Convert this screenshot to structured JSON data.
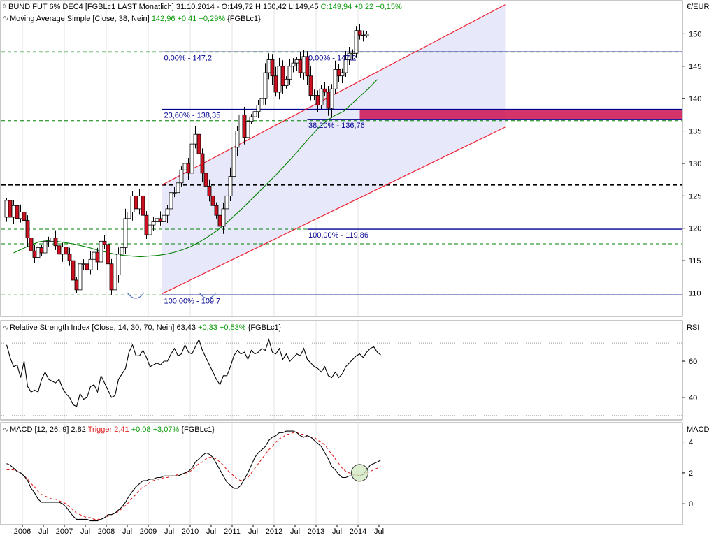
{
  "chart_data": [
    {
      "type": "candlestick",
      "panel": "price",
      "title": "BUND FUT 6% DEC4 [FGBLc1 LAST Monatlich] 31.10.2014",
      "ohlc_text": {
        "open": "O:149,72",
        "high": "H:150,42",
        "low": "L:149,45",
        "close": "C:149,94 +0,22 +0,15%"
      },
      "ma_legend": {
        "label": "Moving Average Simple [Close, 38, Nein]",
        "value": "142,96 +0,41 +0,29%",
        "ric": "{FGBLc1}"
      },
      "unit": "€/EUR",
      "ylim": [
        106.5,
        155
      ],
      "yticks": [
        "110",
        "115",
        "120",
        "125",
        "130",
        "135",
        "140",
        "145",
        "150"
      ],
      "x_labels": [
        {
          "label": "2006",
          "m": 4.5
        },
        {
          "label": "Jul",
          "m": 10.5
        },
        {
          "label": "2007",
          "m": 16.5
        },
        {
          "label": "Jul",
          "m": 22.5
        },
        {
          "label": "2008",
          "m": 28.5
        },
        {
          "label": "Jul",
          "m": 34.5
        },
        {
          "label": "2009",
          "m": 40.5
        },
        {
          "label": "Jul",
          "m": 46.5
        },
        {
          "label": "2010",
          "m": 52.5
        },
        {
          "label": "Jul",
          "m": 58.5
        },
        {
          "label": "2011",
          "m": 64.5
        },
        {
          "label": "Jul",
          "m": 70.5
        },
        {
          "label": "2012",
          "m": 76.5
        },
        {
          "label": "Jul",
          "m": 82.5
        },
        {
          "label": "2013",
          "m": 88.5
        },
        {
          "label": "Jul",
          "m": 94.5
        },
        {
          "label": "2014",
          "m": 100.5
        },
        {
          "label": "Jul",
          "m": 106.5
        }
      ],
      "closes": [
        124.3,
        121.7,
        123.5,
        121.5,
        122.5,
        121.2,
        118.5,
        116.5,
        115.5,
        117.0,
        116.2,
        118.0,
        118.0,
        118.5,
        117.3,
        116.0,
        117.1,
        116.0,
        115.0,
        112.0,
        110.5,
        114.5,
        114.5,
        113.6,
        115.2,
        116.3,
        114.8,
        118.0,
        117.5,
        114.5,
        110.5,
        112.8,
        116.0,
        117.0,
        121.5,
        122.5,
        125.0,
        123.0,
        125.0,
        122.0,
        119.0,
        120.5,
        121.0,
        121.5,
        121.0,
        122.0,
        123.0,
        125.5,
        125.5,
        127.0,
        129.0,
        130.0,
        128.5,
        133.0,
        134.5,
        131.5,
        128.5,
        126.5,
        125.0,
        123.5,
        122.0,
        120.3,
        123.0,
        125.0,
        128.0,
        132.5,
        135.0,
        137.5,
        134.0,
        136.5,
        137.2,
        138.0,
        139.0,
        140.0,
        144.0,
        146.0,
        143.5,
        141.0,
        145.0,
        142.0,
        143.0,
        145.0,
        145.5,
        146.0,
        144.0,
        146.5,
        143.5,
        140.5,
        140.5,
        139.0,
        141.5,
        141.0,
        138.5,
        141.5,
        144.5,
        143.5,
        144.0,
        146.0,
        147.0,
        147.0,
        150.5,
        149.8,
        149.72,
        149.94
      ],
      "first_candle": {
        "open": 121.7,
        "high": 124.6,
        "low": 121.0,
        "close": 124.3
      },
      "candle_tail": {
        "close": 149.94,
        "high": 150.42,
        "low": 149.45
      },
      "ma": {
        "start_month": 2,
        "values": [
          116.2,
          116.8,
          117.4,
          117.9,
          118.1,
          118.0,
          117.8,
          117.6,
          117.3,
          117.0,
          116.6,
          116.3,
          116.0,
          115.8,
          115.7,
          115.6,
          115.7,
          115.8,
          116.0,
          116.3,
          116.7,
          117.2,
          117.9,
          118.7,
          119.6,
          120.6,
          121.8,
          123.0,
          124.3,
          125.6,
          126.9,
          128.2,
          129.6,
          131.0,
          132.5,
          134.0,
          135.4,
          136.6,
          137.4,
          138.0,
          139.2,
          140.4,
          141.6,
          142.96
        ]
      },
      "channel": {
        "upper": {
          "from": [
            44.5,
            126.7
          ],
          "to": [
            142.6,
            154.5
          ]
        },
        "lower": {
          "from": [
            44.5,
            109.9
          ],
          "to": [
            142.6,
            135.6
          ]
        },
        "shade_start": 44.5
      },
      "levels": [
        {
          "y": 147.2,
          "style": "green",
          "from": 0
        },
        {
          "y": 136.6,
          "style": "green",
          "from": 0
        },
        {
          "y": 126.7,
          "style": "black",
          "from": 0
        },
        {
          "y": 119.86,
          "style": "green",
          "from": 0
        },
        {
          "y": 117.6,
          "style": "green",
          "from": 0
        },
        {
          "y": 109.7,
          "style": "green",
          "from": 0
        }
      ],
      "fib_lines": [
        {
          "y": 147.2,
          "from": 44.5,
          "label": "0,00% - 147,2",
          "label_m": 45.0,
          "label_dy": -8
        },
        {
          "y": 147.2,
          "from": 86.0,
          "label": "0,00% - 147,2",
          "label_m": 86.3,
          "label_dy": -8
        },
        {
          "y": 138.35,
          "from": 44.5,
          "label": "23,60% - 138,35",
          "label_m": 45.0,
          "label_dy": -4
        },
        {
          "y": 136.76,
          "from": 86.0,
          "label": "38,20% - 136,76",
          "label_m": 86.3,
          "label_dy": -6
        },
        {
          "y": 119.86,
          "from": 86.0,
          "label": "100,00% - 119,86",
          "label_m": 86.3,
          "label_dy": -6
        },
        {
          "y": 109.7,
          "from": 44.5,
          "label": "100,00% - 109,7",
          "label_m": 45.0,
          "label_dy": -4
        }
      ],
      "fill_zone": {
        "y1": 136.76,
        "y2": 138.35,
        "from": 101.0
      },
      "colors": {
        "up": "#ffffff",
        "down": "#cc1020",
        "grid": "#c0c0c0",
        "level_green": "#008000",
        "fib": "#000090",
        "channel": "#ee2030",
        "shade": "#e8e8fb",
        "ma": "#008000"
      }
    },
    {
      "type": "line",
      "panel": "rsi",
      "title": "Relative Strength Index [Close, 14, 30, 70, Nein]",
      "value": "63,43",
      "change": "+0,33 +0,53%",
      "ric": "{FGBLc1}",
      "axis_label": "RSI",
      "ylim": [
        28,
        82
      ],
      "yticks": [
        "40",
        "60"
      ],
      "guides": [
        30,
        70
      ],
      "values": [
        69,
        62,
        57,
        58,
        51,
        60,
        46,
        43,
        44,
        43,
        50,
        54,
        50,
        49,
        48,
        50,
        45,
        42,
        40,
        36,
        35,
        42,
        39,
        40,
        46,
        47,
        43,
        52,
        48,
        44,
        40,
        41,
        50,
        53,
        56,
        65,
        69,
        63,
        63,
        66,
        62,
        57,
        58,
        59,
        58,
        60,
        60,
        64,
        67,
        63,
        64,
        69,
        65,
        64,
        68,
        72,
        66,
        62,
        58,
        54,
        50,
        47,
        52,
        52,
        57,
        63,
        66,
        64,
        65,
        61,
        66,
        64,
        65,
        67,
        66,
        72,
        65,
        64,
        67,
        61,
        64,
        60,
        62,
        64,
        63,
        67,
        61,
        59,
        57,
        56,
        54,
        57,
        52,
        51,
        54,
        51,
        53,
        57,
        59,
        61,
        63,
        64,
        62,
        65,
        67,
        68,
        65,
        63.43
      ],
      "colors": {
        "line": "#000000",
        "guide": "#999999"
      }
    },
    {
      "type": "line",
      "panel": "macd",
      "title": "MACD [12, 26, 9]",
      "value": "2,82",
      "trigger_label": "Trigger",
      "trigger_value": "2,41",
      "trigger_change": "+0,08 +3,07%",
      "ric": "{FGBLc1}",
      "axis_label": "MACD",
      "ylim": [
        -1.3,
        5.2
      ],
      "yticks": [
        "0",
        "2",
        "4"
      ],
      "series": [
        {
          "name": "MACD",
          "values": [
            2.6,
            2.5,
            2.3,
            2.1,
            2.0,
            1.8,
            1.5,
            1.0,
            0.7,
            0.3,
            0.1,
            0.1,
            0.1,
            0.1,
            0.1,
            0.1,
            0.0,
            -0.2,
            -0.5,
            -0.8,
            -1.0,
            -1.0,
            -1.0,
            -1.0,
            -1.1,
            -1.1,
            -1.1,
            -1.0,
            -0.9,
            -0.7,
            -0.7,
            -0.6,
            -0.4,
            -0.2,
            0.1,
            0.5,
            0.8,
            1.1,
            1.3,
            1.5,
            1.5,
            1.6,
            1.6,
            1.7,
            1.7,
            1.8,
            1.8,
            1.8,
            1.8,
            1.8,
            1.9,
            2.0,
            2.1,
            2.3,
            2.7,
            2.9,
            3.1,
            3.3,
            3.2,
            3.0,
            2.6,
            2.2,
            1.8,
            1.4,
            1.2,
            1.0,
            1.0,
            1.2,
            1.6,
            2.0,
            2.5,
            3.0,
            3.3,
            3.5,
            3.7,
            4.1,
            4.3,
            4.4,
            4.6,
            4.6,
            4.7,
            4.7,
            4.7,
            4.6,
            4.4,
            4.3,
            4.4,
            4.3,
            4.1,
            3.9,
            3.7,
            3.3,
            2.9,
            2.4,
            2.2,
            1.9,
            1.7,
            1.7,
            1.8,
            1.8,
            1.8,
            1.8,
            1.9,
            2.2,
            2.5,
            2.6,
            2.7,
            2.82
          ]
        },
        {
          "name": "Trigger",
          "values": [
            2.2,
            2.2,
            2.2,
            2.1,
            2.0,
            1.8,
            1.6,
            1.3,
            1.1,
            0.8,
            0.6,
            0.5,
            0.4,
            0.3,
            0.3,
            0.2,
            0.1,
            0.0,
            -0.2,
            -0.4,
            -0.6,
            -0.7,
            -0.8,
            -0.9,
            -0.9,
            -1.0,
            -1.0,
            -1.0,
            -0.9,
            -0.8,
            -0.7,
            -0.6,
            -0.5,
            -0.3,
            -0.1,
            0.1,
            0.4,
            0.6,
            0.9,
            1.1,
            1.2,
            1.4,
            1.5,
            1.6,
            1.6,
            1.7,
            1.7,
            1.8,
            1.8,
            1.9,
            1.9,
            2.0,
            2.0,
            2.2,
            2.4,
            2.6,
            2.7,
            2.9,
            3.0,
            3.0,
            2.9,
            2.7,
            2.5,
            2.2,
            2.0,
            1.8,
            1.6,
            1.5,
            1.6,
            1.7,
            2.0,
            2.3,
            2.6,
            2.9,
            3.2,
            3.5,
            3.7,
            4.0,
            4.2,
            4.3,
            4.5,
            4.5,
            4.6,
            4.6,
            4.5,
            4.5,
            4.4,
            4.3,
            4.3,
            4.1,
            4.0,
            3.8,
            3.5,
            3.2,
            2.9,
            2.6,
            2.3,
            2.1,
            2.0,
            1.9,
            1.9,
            1.8,
            1.9,
            2.0,
            2.1,
            2.2,
            2.3,
            2.41
          ]
        }
      ],
      "highlight": {
        "m": 101,
        "v": 2.0
      },
      "colors": {
        "macd": "#000000",
        "trigger": "#e02020",
        "highlight_fill": "#cfeac0"
      }
    }
  ]
}
